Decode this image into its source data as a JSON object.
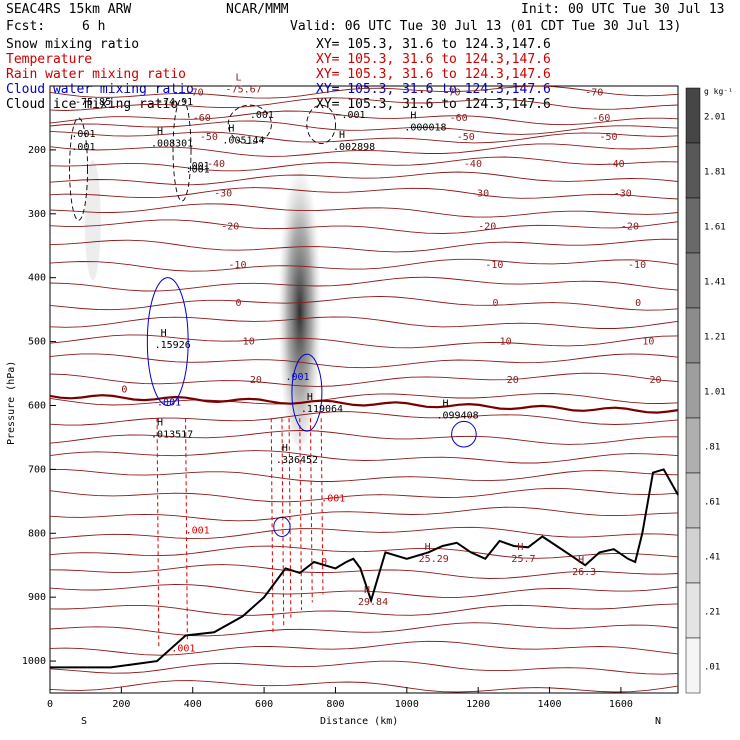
{
  "header": {
    "title": "SEAC4RS 15km ARW",
    "org": "NCAR/MMM",
    "init": "Init: 00 UTC Tue 30 Jul 13",
    "fcst_label": "Fcst:",
    "fcst_value": "6 h",
    "valid": "Valid: 06 UTC Tue 30 Jul 13 (01 CDT Tue 30 Jul 13)"
  },
  "fields": [
    {
      "name": "Snow mixing ratio",
      "xy": "XY= 105.3, 31.6 to 124.3,147.6",
      "color": "#000000"
    },
    {
      "name": "Temperature",
      "xy": "XY= 105.3, 31.6 to 124.3,147.6",
      "color": "#cc0000"
    },
    {
      "name": "Rain water mixing ratio",
      "xy": "XY= 105.3, 31.6 to 124.3,147.6",
      "color": "#cc0000"
    },
    {
      "name": "Cloud water mixing ratio",
      "xy": "XY= 105.3, 31.6 to 124.3,147.6",
      "color": "#0000cc"
    },
    {
      "name": "Cloud ice mixing ratio",
      "xy": "XY= 105.3, 31.6 to 124.3,147.6",
      "color": "#000000"
    }
  ],
  "colorbar": {
    "unit": "g kg⁻¹",
    "ticks": [
      "2.01",
      "1.81",
      "1.61",
      "1.41",
      "1.21",
      "1.01",
      ".81",
      ".61",
      ".41",
      ".21",
      ".01"
    ]
  },
  "colors": {
    "temperature": "#8b1a1a",
    "freezing": "#7a0000",
    "rain": "#dd0000",
    "cloud_water": "#0000cc",
    "cloud_ice": "#000000",
    "terrain": "#000000"
  },
  "chart_data": {
    "type": "cross-section",
    "xlabel": "Distance (km)",
    "ylabel": "Pressure (hPa)",
    "xlim": [
      0,
      1760
    ],
    "ylim": [
      1050,
      100
    ],
    "x_ticks": [
      0,
      200,
      400,
      600,
      800,
      1000,
      1200,
      1400,
      1600
    ],
    "y_ticks": [
      200,
      300,
      400,
      500,
      600,
      700,
      800,
      900,
      1000
    ],
    "x_ends": {
      "left": "S",
      "right": "N"
    },
    "terrain": [
      [
        0,
        1010
      ],
      [
        170,
        1010
      ],
      [
        300,
        1000
      ],
      [
        380,
        960
      ],
      [
        460,
        955
      ],
      [
        540,
        930
      ],
      [
        600,
        900
      ],
      [
        640,
        870
      ],
      [
        660,
        855
      ],
      [
        700,
        862
      ],
      [
        740,
        845
      ],
      [
        800,
        855
      ],
      [
        830,
        845
      ],
      [
        850,
        840
      ],
      [
        870,
        855
      ],
      [
        900,
        905
      ],
      [
        940,
        830
      ],
      [
        1000,
        840
      ],
      [
        1060,
        830
      ],
      [
        1100,
        820
      ],
      [
        1140,
        815
      ],
      [
        1180,
        830
      ],
      [
        1220,
        840
      ],
      [
        1260,
        812
      ],
      [
        1300,
        820
      ],
      [
        1340,
        822
      ],
      [
        1380,
        805
      ],
      [
        1420,
        820
      ],
      [
        1460,
        835
      ],
      [
        1500,
        850
      ],
      [
        1540,
        830
      ],
      [
        1580,
        825
      ],
      [
        1620,
        840
      ],
      [
        1640,
        845
      ],
      [
        1660,
        800
      ],
      [
        1690,
        705
      ],
      [
        1720,
        700
      ],
      [
        1760,
        740
      ]
    ],
    "temperature_contours": [
      {
        "label": "-70",
        "p": 110
      },
      {
        "label": "-60",
        "p": 150
      },
      {
        "label": "-50",
        "p": 180
      },
      {
        "label": "-40",
        "p": 222
      },
      {
        "label": "-30",
        "p": 268
      },
      {
        "label": "-20",
        "p": 320
      },
      {
        "label": "-10",
        "p": 380
      },
      {
        "label": "0",
        "p": 440
      },
      {
        "label": "10",
        "p": 500
      },
      {
        "label": "20",
        "p": 560
      }
    ],
    "isotherm_p": [
      110,
      128,
      150,
      165,
      180,
      200,
      222,
      245,
      268,
      295,
      320,
      350,
      380,
      410,
      440,
      470,
      500,
      530,
      560,
      590,
      620,
      650,
      680,
      710,
      740,
      770,
      800,
      830,
      860,
      890,
      920,
      950,
      980,
      1010,
      1040
    ],
    "ice_labels": [
      ".001",
      ".001",
      ".001",
      "−.001"
    ],
    "highs": [
      {
        "label": "H",
        "value": ".008301",
        "x": 300,
        "p": 195
      },
      {
        "label": "H",
        "value": ".005144",
        "x": 500,
        "p": 190
      },
      {
        "label": "H",
        "value": ".002898",
        "x": 810,
        "p": 200
      },
      {
        "label": "H",
        "value": ".000018",
        "x": 1010,
        "p": 170
      },
      {
        "label": "H",
        "value": ".15926",
        "x": 310,
        "p": 510
      },
      {
        "label": "H",
        "value": ".119064",
        "x": 720,
        "p": 610
      },
      {
        "label": "H",
        "value": ".099408",
        "x": 1100,
        "p": 620
      },
      {
        "label": "H",
        "value": ".013517",
        "x": 300,
        "p": 650
      },
      {
        "label": "H",
        "value": ".336452",
        "x": 650,
        "p": 690
      },
      {
        "label": "H",
        "value": "29.84",
        "x": 880,
        "p": 912
      },
      {
        "label": "H",
        "value": "25.29",
        "x": 1050,
        "p": 845
      },
      {
        "label": "H",
        "value": "25.7",
        "x": 1310,
        "p": 845
      },
      {
        "label": "H",
        "value": "26.3",
        "x": 1480,
        "p": 865
      }
    ],
    "lows": [
      {
        "label": "L",
        "value": "-75.67",
        "x": 520,
        "p": 110
      }
    ],
    "extra_labels": [
      {
        "text": "-75.85",
        "x": 70,
        "p": 130
      },
      {
        "text": "-74.91",
        "x": 300,
        "p": 130
      },
      {
        "text": ".001",
        "x": 60,
        "p": 200
      },
      {
        "text": ".001",
        "x": 380,
        "p": 230
      }
    ],
    "rain_labels": [
      ".001",
      ".001",
      ".001",
      "0"
    ],
    "cloud_water_labels": [
      ".001",
      ".001"
    ],
    "snow_max": 2.01,
    "freezing_label": "0"
  }
}
